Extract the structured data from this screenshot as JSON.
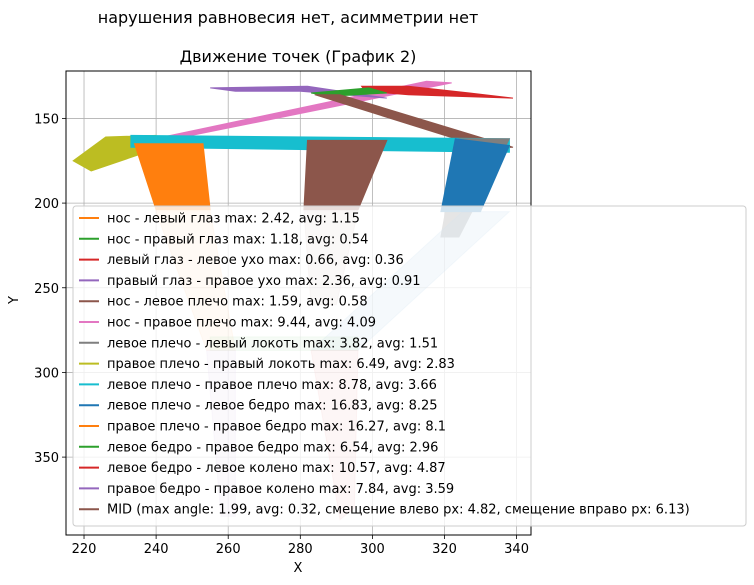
{
  "figure": {
    "suptitle": "нарушения равновесия нет, асимметрии нет"
  },
  "chart_data": {
    "type": "line",
    "title": "Движение точек (График 2)",
    "xlabel": "X",
    "ylabel": "Y",
    "xlim": [
      215,
      344
    ],
    "ylim": [
      396,
      122
    ],
    "y_inverted": true,
    "grid": true,
    "xticks": [
      220,
      240,
      260,
      280,
      300,
      320,
      340
    ],
    "yticks": [
      150,
      200,
      250,
      300,
      350
    ],
    "legend_position": "lower-left, extending beyond right edge",
    "series": [
      {
        "name": "нос - левый глаз max: 2.42, avg: 1.15",
        "color": "#ff7f0e"
      },
      {
        "name": "нос - правый глаз max: 1.18, avg: 0.54",
        "color": "#2ca02c"
      },
      {
        "name": "левый глаз - левое ухо max: 0.66, avg: 0.36",
        "color": "#d62728"
      },
      {
        "name": "правый глаз - правое ухо max: 2.36, avg: 0.91",
        "color": "#9467bd"
      },
      {
        "name": "нос - левое плечо max: 1.59, avg: 0.58",
        "color": "#8c564b"
      },
      {
        "name": "нос - правое плечо max: 9.44, avg: 4.09",
        "color": "#e377c2"
      },
      {
        "name": "левое плечо - левый локоть max: 3.82, avg: 1.51",
        "color": "#7f7f7f"
      },
      {
        "name": "правое плечо - правый локоть max: 6.49, avg: 2.83",
        "color": "#bcbd22"
      },
      {
        "name": "левое плечо - правое плечо max: 8.78, avg: 3.66",
        "color": "#17becf"
      },
      {
        "name": "левое плечо - левое бедро max: 16.83, avg: 8.25",
        "color": "#1f77b4"
      },
      {
        "name": "правое плечо - правое бедро max: 16.27, avg: 8.1",
        "color": "#ff7f0e"
      },
      {
        "name": "левое бедро - правое бедро max: 6.54, avg: 2.96",
        "color": "#2ca02c"
      },
      {
        "name": "левое бедро - левое колено max: 10.57, avg: 4.87",
        "color": "#d62728"
      },
      {
        "name": "правое бедро - правое колено max: 7.84, avg: 3.59",
        "color": "#9467bd"
      },
      {
        "name": "MID (max angle: 1.99, avg: 0.32, смещение влево px: 4.82, смещение вправо px: 6.13)",
        "color": "#8c564b"
      }
    ],
    "bands": [
      {
        "series": 5,
        "points": [
          [
            233,
            165
          ],
          [
            243,
            163
          ],
          [
            322,
            129
          ],
          [
            315,
            128
          ]
        ],
        "opacity": 1.0
      },
      {
        "series": 3,
        "points": [
          [
            255,
            132
          ],
          [
            282,
            131
          ],
          [
            304,
            138
          ],
          [
            280,
            134
          ],
          [
            262,
            134
          ]
        ],
        "opacity": 1.0
      },
      {
        "series": 2,
        "points": [
          [
            297,
            131
          ],
          [
            310,
            131
          ],
          [
            327,
            135
          ],
          [
            339,
            138
          ],
          [
            310,
            136
          ],
          [
            298,
            134
          ]
        ],
        "opacity": 1.0
      },
      {
        "series": 1,
        "points": [
          [
            283,
            135
          ],
          [
            299,
            132
          ],
          [
            304,
            135
          ],
          [
            288,
            137
          ]
        ],
        "opacity": 1.0
      },
      {
        "series": 4,
        "points": [
          [
            284,
            136
          ],
          [
            291,
            136
          ],
          [
            339,
            167
          ],
          [
            332,
            168
          ]
        ],
        "opacity": 1.0
      },
      {
        "series": 7,
        "points": [
          [
            217,
            175
          ],
          [
            226,
            161
          ],
          [
            240,
            160
          ],
          [
            240,
            168
          ],
          [
            222,
            181
          ]
        ],
        "opacity": 1.0
      },
      {
        "series": 8,
        "points": [
          [
            233,
            160
          ],
          [
            338,
            162
          ],
          [
            338,
            170
          ],
          [
            233,
            167
          ]
        ],
        "opacity": 1.0
      },
      {
        "series": 6,
        "points": [
          [
            324,
            162
          ],
          [
            338,
            162
          ],
          [
            324,
            220
          ],
          [
            319,
            220
          ]
        ],
        "opacity": 1.0
      },
      {
        "series": 9,
        "points": [
          [
            323,
            162
          ],
          [
            338,
            166
          ],
          [
            330,
            205
          ],
          [
            319,
            205
          ]
        ],
        "opacity": 1.0
      },
      {
        "series": 4,
        "points": [
          [
            282,
            163
          ],
          [
            304,
            163
          ],
          [
            296,
            204
          ],
          [
            281,
            204
          ]
        ],
        "opacity": 1.0
      },
      {
        "series": 10,
        "points": [
          [
            234,
            165
          ],
          [
            253,
            165
          ],
          [
            255,
            204
          ],
          [
            240,
            204
          ]
        ],
        "opacity": 1.0
      },
      {
        "series": 9,
        "points": [
          [
            325,
            205
          ],
          [
            338,
            205
          ],
          [
            296,
            287
          ],
          [
            283,
            287
          ]
        ],
        "opacity": 0.22
      },
      {
        "series": 10,
        "points": [
          [
            240,
            205
          ],
          [
            255,
            205
          ],
          [
            262,
            287
          ],
          [
            254,
            287
          ]
        ],
        "opacity": 0.22
      },
      {
        "series": 4,
        "points": [
          [
            281,
            205
          ],
          [
            296,
            205
          ],
          [
            290,
            260
          ],
          [
            283,
            260
          ]
        ],
        "opacity": 0.22
      },
      {
        "series": 11,
        "points": [
          [
            255,
            279
          ],
          [
            296,
            279
          ],
          [
            296,
            287
          ],
          [
            255,
            287
          ]
        ],
        "opacity": 0.22
      },
      {
        "series": 12,
        "points": [
          [
            283,
            287
          ],
          [
            296,
            287
          ],
          [
            295,
            380
          ],
          [
            291,
            387
          ]
        ],
        "opacity": 0.22
      },
      {
        "series": 13,
        "points": [
          [
            254,
            287
          ],
          [
            262,
            287
          ],
          [
            262,
            385
          ],
          [
            258,
            385
          ]
        ],
        "opacity": 0.22
      }
    ]
  }
}
